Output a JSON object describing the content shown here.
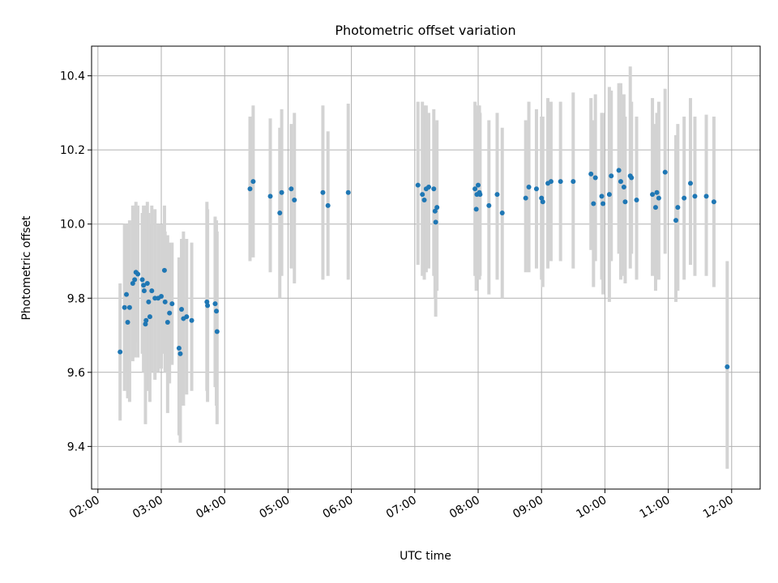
{
  "chart_data": {
    "type": "scatter",
    "title": "Photometric offset variation",
    "xlabel": "UTC time",
    "ylabel": "Photometric offset",
    "x_unit": "hours UTC",
    "xlim": [
      1.9,
      12.45
    ],
    "ylim": [
      9.285,
      10.48
    ],
    "x_ticks": [
      2,
      3,
      4,
      5,
      6,
      7,
      8,
      9,
      10,
      11,
      12
    ],
    "x_tick_labels": [
      "02:00",
      "03:00",
      "04:00",
      "05:00",
      "06:00",
      "07:00",
      "08:00",
      "09:00",
      "10:00",
      "11:00",
      "12:00"
    ],
    "y_ticks": [
      9.4,
      9.6,
      9.8,
      10.0,
      10.2,
      10.4
    ],
    "y_tick_labels": [
      "9.4",
      "9.6",
      "9.8",
      "10.0",
      "10.2",
      "10.4"
    ],
    "grid": true,
    "colors": {
      "points": "#1f77b4",
      "errorbars": "#d3d3d3",
      "grid": "#b0b0b0"
    },
    "series": [
      {
        "points": [
          [
            2.35,
            9.655,
            9.47,
            9.84
          ],
          [
            2.42,
            9.775,
            9.55,
            10.0
          ],
          [
            2.45,
            9.81,
            9.6,
            10.0
          ],
          [
            2.47,
            9.735,
            9.53,
            9.96
          ],
          [
            2.5,
            9.775,
            9.52,
            10.01
          ],
          [
            2.55,
            9.84,
            9.63,
            10.05
          ],
          [
            2.58,
            9.85,
            9.64,
            10.05
          ],
          [
            2.6,
            9.87,
            9.68,
            10.06
          ],
          [
            2.63,
            9.865,
            9.64,
            10.05
          ],
          [
            2.7,
            9.85,
            9.65,
            10.03
          ],
          [
            2.72,
            9.835,
            9.6,
            10.05
          ],
          [
            2.73,
            9.82,
            9.62,
            10.0
          ],
          [
            2.75,
            9.73,
            9.46,
            10.05
          ],
          [
            2.76,
            9.74,
            9.55,
            9.94
          ],
          [
            2.78,
            9.84,
            9.59,
            10.06
          ],
          [
            2.8,
            9.79,
            9.55,
            10.03
          ],
          [
            2.82,
            9.75,
            9.52,
            10.0
          ],
          [
            2.85,
            9.82,
            9.6,
            10.05
          ],
          [
            2.9,
            9.8,
            9.58,
            10.04
          ],
          [
            2.95,
            9.8,
            9.6,
            10.0
          ],
          [
            3.0,
            9.805,
            9.61,
            10.0
          ],
          [
            3.05,
            9.875,
            9.65,
            10.05
          ],
          [
            3.06,
            9.79,
            9.6,
            9.98
          ],
          [
            3.1,
            9.735,
            9.49,
            9.97
          ],
          [
            3.13,
            9.76,
            9.57,
            9.95
          ],
          [
            3.17,
            9.785,
            9.62,
            9.95
          ],
          [
            3.28,
            9.665,
            9.43,
            9.91
          ],
          [
            3.3,
            9.65,
            9.41,
            9.87
          ],
          [
            3.32,
            9.77,
            9.58,
            9.96
          ],
          [
            3.35,
            9.745,
            9.51,
            9.98
          ],
          [
            3.4,
            9.75,
            9.54,
            9.96
          ],
          [
            3.48,
            9.74,
            9.55,
            9.95
          ],
          [
            3.72,
            9.79,
            9.55,
            10.06
          ],
          [
            3.73,
            9.78,
            9.52,
            10.04
          ],
          [
            3.85,
            9.785,
            9.56,
            10.02
          ],
          [
            3.87,
            9.765,
            9.51,
            10.01
          ],
          [
            3.88,
            9.71,
            9.46,
            9.98
          ],
          [
            4.4,
            10.095,
            9.9,
            10.29
          ],
          [
            4.45,
            10.115,
            9.91,
            10.32
          ],
          [
            4.72,
            10.075,
            9.87,
            10.285
          ],
          [
            4.87,
            10.03,
            9.8,
            10.26
          ],
          [
            4.9,
            10.085,
            9.86,
            10.31
          ],
          [
            5.05,
            10.095,
            9.88,
            10.27
          ],
          [
            5.1,
            10.065,
            9.84,
            10.3
          ],
          [
            5.55,
            10.085,
            9.85,
            10.32
          ],
          [
            5.63,
            10.05,
            9.86,
            10.25
          ],
          [
            5.95,
            10.085,
            9.85,
            10.325
          ],
          [
            7.05,
            10.105,
            9.89,
            10.33
          ],
          [
            7.12,
            10.08,
            9.86,
            10.33
          ],
          [
            7.15,
            10.065,
            9.85,
            10.32
          ],
          [
            7.18,
            10.095,
            9.87,
            10.32
          ],
          [
            7.22,
            10.1,
            9.88,
            10.3
          ],
          [
            7.3,
            10.095,
            9.86,
            10.31
          ],
          [
            7.32,
            10.035,
            9.8,
            10.27
          ],
          [
            7.33,
            10.005,
            9.75,
            10.24
          ],
          [
            7.35,
            10.045,
            9.82,
            10.28
          ],
          [
            7.95,
            10.095,
            9.86,
            10.33
          ],
          [
            7.97,
            10.04,
            9.82,
            10.25
          ],
          [
            7.98,
            10.08,
            9.86,
            10.3
          ],
          [
            8.0,
            10.105,
            9.89,
            10.32
          ],
          [
            8.02,
            10.085,
            9.85,
            10.32
          ],
          [
            8.03,
            10.08,
            9.86,
            10.3
          ],
          [
            8.17,
            10.05,
            9.81,
            10.28
          ],
          [
            8.3,
            10.08,
            9.85,
            10.3
          ],
          [
            8.38,
            10.03,
            9.8,
            10.26
          ],
          [
            8.75,
            10.07,
            9.87,
            10.28
          ],
          [
            8.8,
            10.1,
            9.87,
            10.33
          ],
          [
            8.92,
            10.095,
            9.88,
            10.31
          ],
          [
            9.0,
            10.07,
            9.85,
            10.29
          ],
          [
            9.02,
            10.06,
            9.83,
            10.29
          ],
          [
            9.1,
            10.11,
            9.88,
            10.34
          ],
          [
            9.15,
            10.115,
            9.9,
            10.33
          ],
          [
            9.3,
            10.115,
            9.9,
            10.33
          ],
          [
            9.5,
            10.115,
            9.88,
            10.355
          ],
          [
            9.78,
            10.135,
            9.93,
            10.34
          ],
          [
            9.82,
            10.055,
            9.83,
            10.28
          ],
          [
            9.85,
            10.125,
            9.9,
            10.35
          ],
          [
            9.95,
            10.075,
            9.85,
            10.3
          ],
          [
            9.97,
            10.055,
            9.81,
            10.3
          ],
          [
            10.07,
            10.08,
            9.79,
            10.37
          ],
          [
            10.1,
            10.13,
            9.9,
            10.36
          ],
          [
            10.22,
            10.145,
            9.92,
            10.38
          ],
          [
            10.25,
            10.115,
            9.85,
            10.38
          ],
          [
            10.3,
            10.1,
            9.86,
            10.35
          ],
          [
            10.32,
            10.06,
            9.84,
            10.29
          ],
          [
            10.4,
            10.13,
            9.88,
            10.425
          ],
          [
            10.42,
            10.125,
            9.92,
            10.33
          ],
          [
            10.5,
            10.065,
            9.85,
            10.29
          ],
          [
            10.75,
            10.08,
            9.86,
            10.34
          ],
          [
            10.8,
            10.045,
            9.82,
            10.27
          ],
          [
            10.82,
            10.085,
            9.86,
            10.3
          ],
          [
            10.85,
            10.07,
            9.85,
            10.33
          ],
          [
            10.95,
            10.14,
            9.92,
            10.365
          ],
          [
            11.12,
            10.01,
            9.79,
            10.24
          ],
          [
            11.15,
            10.045,
            9.82,
            10.27
          ],
          [
            11.25,
            10.07,
            9.85,
            10.29
          ],
          [
            11.35,
            10.11,
            9.89,
            10.34
          ],
          [
            11.42,
            10.075,
            9.86,
            10.29
          ],
          [
            11.6,
            10.075,
            9.86,
            10.295
          ],
          [
            11.72,
            10.06,
            9.83,
            10.29
          ],
          [
            11.93,
            9.615,
            9.34,
            9.9
          ]
        ]
      }
    ]
  }
}
